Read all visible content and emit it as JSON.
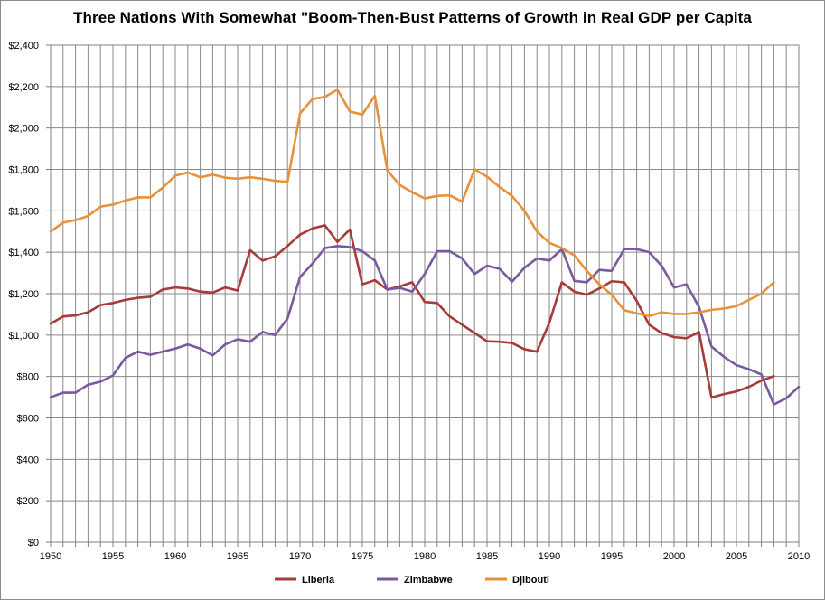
{
  "chart_data": {
    "type": "line",
    "title": "Three Nations With Somewhat \"Boom-Then-Bust Patterns of Growth in Real GDP per Capita",
    "xlabel": "",
    "ylabel": "",
    "xlim": [
      1950,
      2010
    ],
    "ylim": [
      0,
      2400
    ],
    "grid": true,
    "legend_position": "bottom",
    "x_ticks": [
      1950,
      1955,
      1960,
      1965,
      1970,
      1975,
      1980,
      1985,
      1990,
      1995,
      2000,
      2005,
      2010
    ],
    "x_tick_labels": [
      "1950",
      "1955",
      "1960",
      "1965",
      "1970",
      "1975",
      "1980",
      "1985",
      "1990",
      "1995",
      "2000",
      "2005",
      "2010"
    ],
    "y_ticks": [
      0,
      200,
      400,
      600,
      800,
      1000,
      1200,
      1400,
      1600,
      1800,
      2000,
      2200,
      2400
    ],
    "y_tick_labels": [
      "$0",
      "$200",
      "$400",
      "$600",
      "$800",
      "$1,000",
      "$1,200",
      "$1,400",
      "$1,600",
      "$1,800",
      "$2,000",
      "$2,200",
      "$2,400"
    ],
    "series": [
      {
        "name": "Liberia",
        "color": "#a83a3a",
        "start_year": 1950,
        "values": [
          1055,
          1090,
          1095,
          1110,
          1145,
          1155,
          1170,
          1180,
          1185,
          1220,
          1230,
          1225,
          1210,
          1205,
          1230,
          1215,
          1410,
          1360,
          1380,
          1430,
          1485,
          1515,
          1530,
          1450,
          1510,
          1245,
          1265,
          1220,
          1235,
          1255,
          1160,
          1155,
          1090,
          1050,
          1010,
          970,
          968,
          962,
          932,
          920,
          1060,
          1255,
          1210,
          1195,
          1225,
          1260,
          1255,
          1165,
          1050,
          1010,
          990,
          985,
          1015,
          698,
          715,
          728,
          750,
          780,
          802
        ]
      },
      {
        "name": "Zimbabwe",
        "color": "#7a5a9e",
        "start_year": 1950,
        "values": [
          700,
          722,
          722,
          760,
          775,
          805,
          890,
          920,
          905,
          920,
          935,
          955,
          935,
          902,
          955,
          980,
          968,
          1015,
          1000,
          1080,
          1280,
          1345,
          1420,
          1430,
          1425,
          1405,
          1360,
          1220,
          1228,
          1210,
          1295,
          1405,
          1405,
          1370,
          1295,
          1335,
          1320,
          1258,
          1325,
          1370,
          1360,
          1415,
          1262,
          1255,
          1315,
          1310,
          1415,
          1415,
          1400,
          1335,
          1230,
          1245,
          1135,
          945,
          895,
          855,
          835,
          810,
          665,
          695,
          750
        ]
      },
      {
        "name": "Djibouti",
        "color": "#e8913a",
        "start_year": 1950,
        "values": [
          1500,
          1543,
          1555,
          1575,
          1620,
          1630,
          1650,
          1665,
          1665,
          1712,
          1770,
          1785,
          1762,
          1775,
          1760,
          1755,
          1762,
          1755,
          1745,
          1740,
          2070,
          2140,
          2150,
          2185,
          2080,
          2065,
          2155,
          1795,
          1725,
          1690,
          1660,
          1672,
          1675,
          1645,
          1800,
          1765,
          1715,
          1672,
          1600,
          1500,
          1445,
          1420,
          1385,
          1310,
          1245,
          1195,
          1120,
          1105,
          1092,
          1110,
          1102,
          1102,
          1110,
          1122,
          1128,
          1140,
          1170,
          1200,
          1255
        ]
      }
    ]
  }
}
